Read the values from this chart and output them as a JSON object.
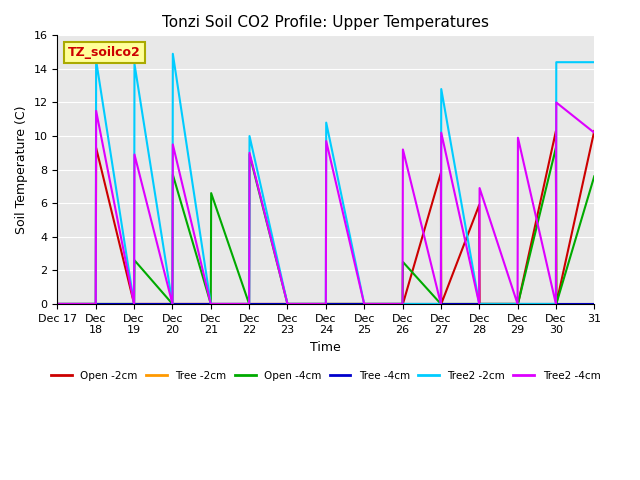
{
  "title": "Tonzi Soil CO2 Profile: Upper Temperatures",
  "xlabel": "Time",
  "ylabel": "Soil Temperature (C)",
  "annotation": "TZ_soilco2",
  "ylim": [
    0,
    16
  ],
  "background_color": "#e8e8e8",
  "series": {
    "Open -2cm": {
      "color": "#cc0000",
      "lw": 1.5,
      "x": [
        17,
        18,
        18.01,
        19,
        19.01,
        20,
        20.01,
        21,
        21.01,
        22,
        22.01,
        23,
        23.01,
        24,
        24.01,
        25,
        25.01,
        26,
        26.01,
        27,
        27.01,
        28,
        28.01,
        29,
        29.01,
        30,
        30.01,
        31
      ],
      "y": [
        0,
        0,
        9.3,
        0,
        0,
        0,
        0,
        0,
        0,
        0,
        0,
        0,
        0,
        0,
        0,
        0,
        0,
        0,
        0,
        7.8,
        0,
        5.9,
        0,
        0,
        0,
        10.3,
        0,
        10.3
      ]
    },
    "Tree -2cm": {
      "color": "#ff9900",
      "lw": 1.5,
      "x": [
        17,
        31
      ],
      "y": [
        0,
        0
      ]
    },
    "Open -4cm": {
      "color": "#00aa00",
      "lw": 1.5,
      "x": [
        17,
        18,
        18.01,
        19,
        19.01,
        20,
        20.01,
        21,
        21.01,
        22,
        22.01,
        23,
        23.01,
        24,
        24.01,
        25,
        25.01,
        26,
        26.01,
        27,
        27.01,
        28,
        28.01,
        29,
        29.01,
        30,
        30.01,
        31
      ],
      "y": [
        0,
        0,
        0,
        0,
        2.6,
        0,
        7.7,
        0,
        6.6,
        0,
        8.9,
        0,
        0,
        0,
        0,
        0,
        0,
        0,
        2.5,
        0,
        0,
        0,
        0,
        0,
        0,
        9.3,
        0,
        7.6
      ]
    },
    "Tree -4cm": {
      "color": "#0000cc",
      "lw": 1.5,
      "x": [
        17,
        31
      ],
      "y": [
        0,
        0
      ]
    },
    "Tree2 -2cm": {
      "color": "#00ccff",
      "lw": 1.5,
      "x": [
        17,
        18,
        18.01,
        19,
        19.01,
        20,
        20.01,
        21,
        21.01,
        22,
        22.01,
        23,
        23.01,
        24,
        24.01,
        25,
        25.01,
        26,
        26.01,
        27,
        27.01,
        28,
        28.01,
        29,
        29.01,
        30,
        30.01,
        31
      ],
      "y": [
        0,
        0,
        14.5,
        0,
        14.3,
        0,
        14.9,
        0,
        0,
        0,
        10.0,
        0,
        0,
        0,
        10.8,
        0,
        0,
        0,
        0,
        0,
        12.8,
        0,
        0,
        0,
        0,
        0,
        14.4,
        14.4
      ]
    },
    "Tree2 -4cm": {
      "color": "#dd00ff",
      "lw": 1.5,
      "x": [
        17,
        18,
        18.01,
        19,
        19.01,
        20,
        20.01,
        21,
        21.01,
        22,
        22.01,
        23,
        23.01,
        24,
        24.01,
        25,
        25.01,
        26,
        26.01,
        27,
        27.01,
        28,
        28.01,
        29,
        29.01,
        30,
        30.01,
        31
      ],
      "y": [
        0,
        0,
        11.5,
        0,
        8.9,
        0,
        9.5,
        0,
        0,
        0,
        9.0,
        0,
        0,
        0,
        9.7,
        0,
        0,
        0,
        9.2,
        0,
        10.2,
        0,
        6.9,
        0,
        9.9,
        0,
        12.0,
        10.2
      ]
    }
  },
  "legend_order": [
    "Open -2cm",
    "Tree -2cm",
    "Open -4cm",
    "Tree -4cm",
    "Tree2 -2cm",
    "Tree2 -4cm"
  ]
}
